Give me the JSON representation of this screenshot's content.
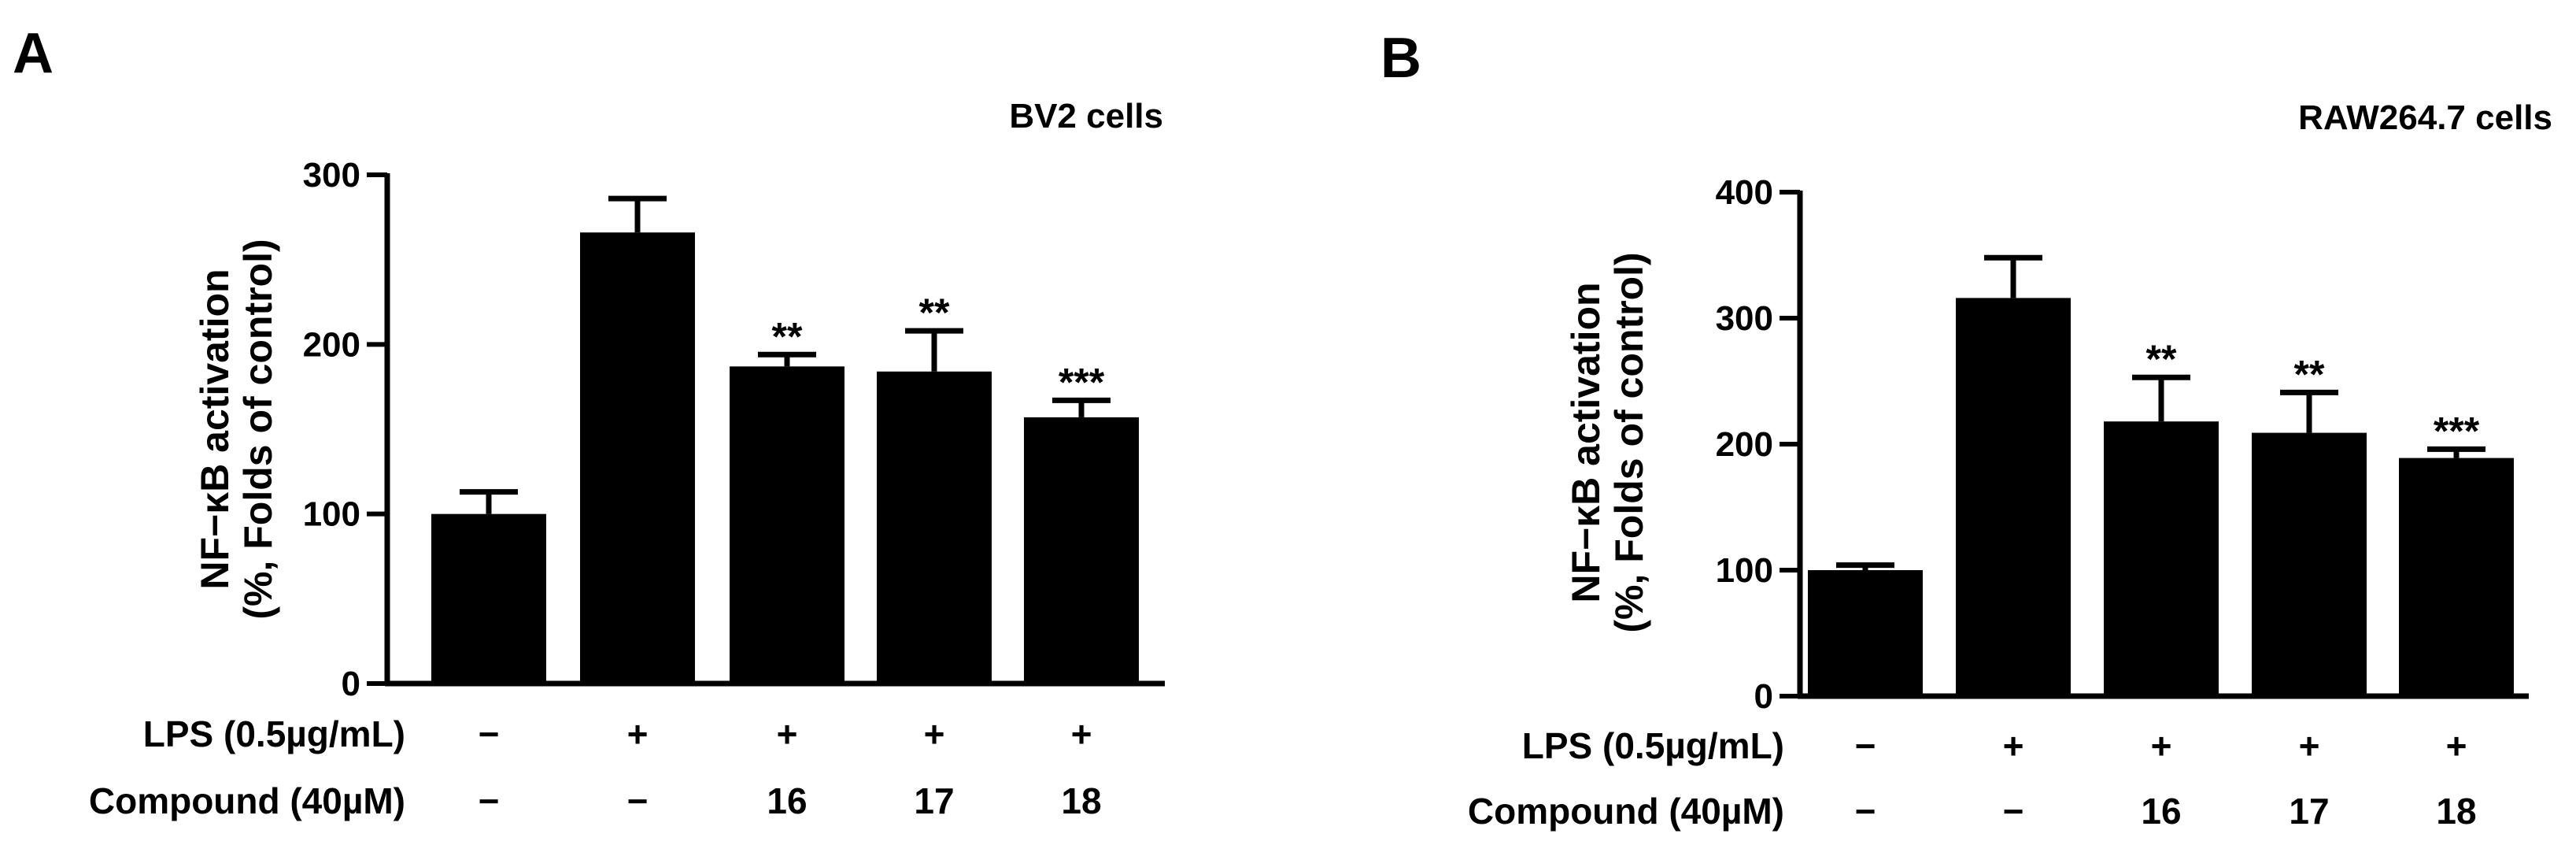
{
  "chart_data": [
    {
      "panel_label": "A",
      "type": "bar",
      "title": "BV2 cells",
      "ylabel_line1": "NF−κB activation",
      "ylabel_line2": "(%, Folds of control)",
      "ylim": [
        0,
        300
      ],
      "yticks": [
        0,
        100,
        200,
        300
      ],
      "rows": [
        {
          "label": "LPS (0.5µg/mL)",
          "values": [
            "−",
            "+",
            "+",
            "+",
            "+"
          ]
        },
        {
          "label": "Compound (40µM)",
          "values": [
            "−",
            "−",
            "16",
            "17",
            "18"
          ]
        }
      ],
      "bars": [
        {
          "value": 100,
          "error": 13,
          "sig": ""
        },
        {
          "value": 266,
          "error": 20,
          "sig": ""
        },
        {
          "value": 187,
          "error": 7,
          "sig": "**"
        },
        {
          "value": 184,
          "error": 24,
          "sig": "**"
        },
        {
          "value": 157,
          "error": 10,
          "sig": "***"
        }
      ],
      "bar_color": "#000000"
    },
    {
      "panel_label": "B",
      "type": "bar",
      "title": "RAW264.7 cells",
      "ylabel_line1": "NF−κB activation",
      "ylabel_line2": "(%, Folds of control)",
      "ylim": [
        0,
        400
      ],
      "yticks": [
        0,
        100,
        200,
        300,
        400
      ],
      "rows": [
        {
          "label": "LPS (0.5µg/mL)",
          "values": [
            "−",
            "+",
            "+",
            "+",
            "+"
          ]
        },
        {
          "label": "Compound (40µM)",
          "values": [
            "−",
            "−",
            "16",
            "17",
            "18"
          ]
        }
      ],
      "bars": [
        {
          "value": 100,
          "error": 4,
          "sig": ""
        },
        {
          "value": 316,
          "error": 32,
          "sig": ""
        },
        {
          "value": 218,
          "error": 35,
          "sig": "**"
        },
        {
          "value": 209,
          "error": 32,
          "sig": "**"
        },
        {
          "value": 189,
          "error": 7,
          "sig": "***"
        }
      ],
      "bar_color": "#000000"
    }
  ]
}
